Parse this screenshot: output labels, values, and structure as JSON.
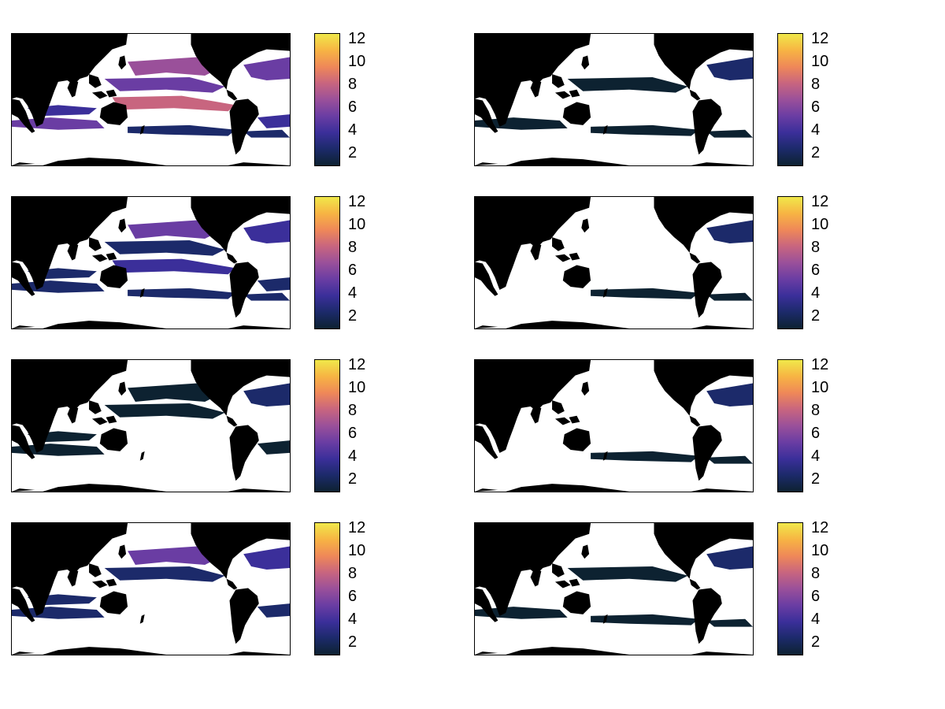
{
  "figure": {
    "colormap": {
      "name": "thermal",
      "stops": [
        "#0d2231",
        "#1c2a6a",
        "#3b2f9a",
        "#6a3da3",
        "#9a509a",
        "#c8657f",
        "#ef8858",
        "#f7b443",
        "#f0e84a"
      ]
    },
    "colorbar": {
      "min": 1,
      "max": 12.5,
      "ticks": [
        "12",
        "10",
        "8",
        "6",
        "4",
        "2"
      ]
    },
    "land_color": "#000000",
    "ocean_mask_color": "#ffffff",
    "panels": [
      {
        "id": "r1c1",
        "intensity": "high",
        "coverage": "broad"
      },
      {
        "id": "r1c2",
        "intensity": "low",
        "coverage": "sparse"
      },
      {
        "id": "r2c1",
        "intensity": "medium",
        "coverage": "broad"
      },
      {
        "id": "r2c2",
        "intensity": "low",
        "coverage": "minimal"
      },
      {
        "id": "r3c1",
        "intensity": "low",
        "coverage": "moderate"
      },
      {
        "id": "r3c2",
        "intensity": "low",
        "coverage": "minimal"
      },
      {
        "id": "r4c1",
        "intensity": "medium",
        "coverage": "moderate"
      },
      {
        "id": "r4c2",
        "intensity": "low",
        "coverage": "sparse"
      }
    ]
  }
}
